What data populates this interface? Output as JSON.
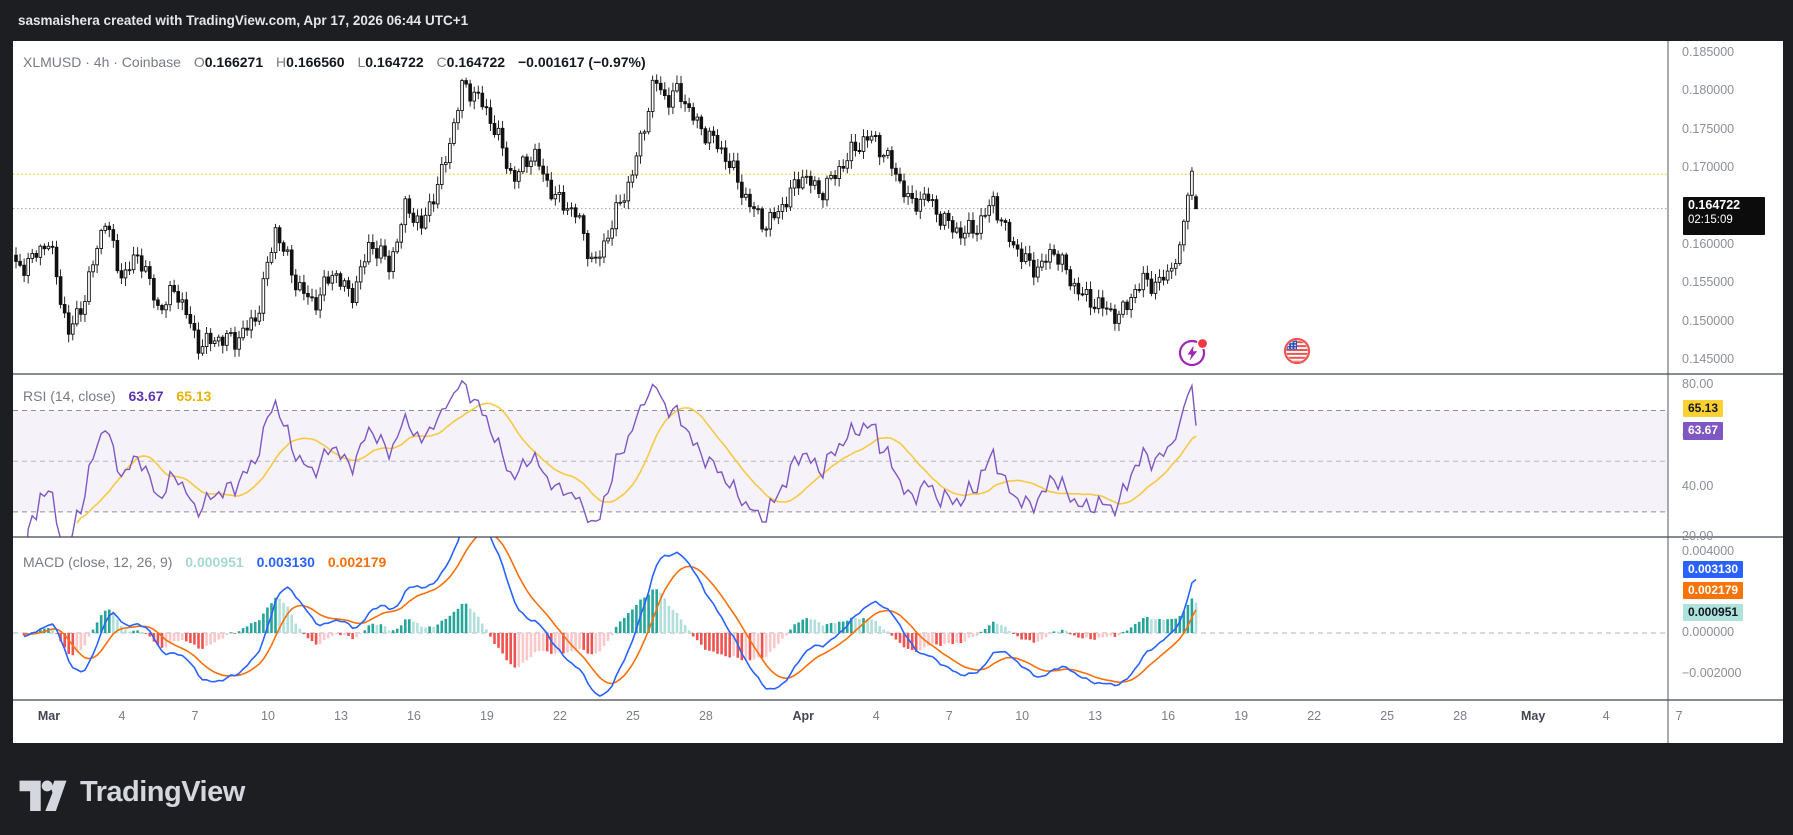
{
  "header": {
    "attribution": "sasmaishera created with TradingView.com, Apr 17, 2026 06:44 UTC+1"
  },
  "footer": {
    "brand": "TradingView"
  },
  "legend": {
    "title": "XLMUSD · 4h · Coinbase",
    "o_label": "O",
    "o_value": "0.166271",
    "h_label": "H",
    "h_value": "0.166560",
    "l_label": "L",
    "l_value": "0.164722",
    "c_label": "C",
    "c_value": "0.164722",
    "change": "−0.001617 (−0.97%)"
  },
  "rsi_legend": {
    "title": "RSI (14, close)",
    "main_value": "63.67",
    "ma_value": "65.13"
  },
  "macd_legend": {
    "title": "MACD (close, 12, 26, 9)",
    "hist_value": "0.000951",
    "macd_value": "0.003130",
    "signal_value": "0.002179"
  },
  "badges": {
    "price": "0.164722",
    "countdown": "02:15:09",
    "rsi_ma": "65.13",
    "rsi_main": "63.67",
    "macd_line": "0.003130",
    "macd_signal": "0.002179",
    "macd_hist": "0.000951"
  },
  "colors": {
    "rsi_purple": "#7e57c2",
    "rsi_yellow": "#f7c948",
    "macd_blue": "#2962ff",
    "macd_orange": "#f7700b",
    "hist_pos_strong": "#26a69a",
    "hist_pos_weak": "#b2dfdb",
    "hist_neg_strong": "#ef5350",
    "hist_neg_weak": "#f9c8ca",
    "candle_up_fill": "#ffffff",
    "candle_down_fill": "#111111",
    "candle_border": "#111111",
    "alert_line_yellow": "#f0c000",
    "price_line_gray": "#a0a3ad"
  },
  "chart_data": [
    {
      "type": "candlestick",
      "symbol": "XLMUSD",
      "interval": "4h",
      "exchange": "Coinbase",
      "last_bar": {
        "open": 0.166271,
        "high": 0.16656,
        "low": 0.164722,
        "close": 0.164722,
        "change": -0.001617,
        "change_pct": -0.97
      },
      "price_axis": {
        "min": 0.145,
        "max": 0.185,
        "tick_step": 0.005,
        "ticks": [
          0.185,
          0.18,
          0.175,
          0.17,
          0.16,
          0.155,
          0.15,
          0.145
        ]
      },
      "levels": {
        "alert_dotted_yellow": 0.1692,
        "last_price_dotted": 0.164722
      },
      "bars_per_day": 6,
      "close_path_keypoints": [
        [
          -1.4,
          0.1572
        ],
        [
          -0.7,
          0.1582
        ],
        [
          0.0,
          0.1602
        ],
        [
          0.8,
          0.1488
        ],
        [
          1.5,
          0.1532
        ],
        [
          2.3,
          0.1635
        ],
        [
          3.0,
          0.156
        ],
        [
          3.7,
          0.1585
        ],
        [
          4.5,
          0.1518
        ],
        [
          5.2,
          0.1545
        ],
        [
          6.1,
          0.1468
        ],
        [
          6.9,
          0.1482
        ],
        [
          7.7,
          0.1472
        ],
        [
          8.5,
          0.1506
        ],
        [
          9.3,
          0.162
        ],
        [
          10.1,
          0.1552
        ],
        [
          10.9,
          0.1526
        ],
        [
          11.7,
          0.1562
        ],
        [
          12.4,
          0.1534
        ],
        [
          13.2,
          0.1602
        ],
        [
          14.0,
          0.157
        ],
        [
          14.7,
          0.1658
        ],
        [
          15.3,
          0.162
        ],
        [
          16.1,
          0.1686
        ],
        [
          17.0,
          0.181
        ],
        [
          17.7,
          0.1786
        ],
        [
          18.4,
          0.175
        ],
        [
          19.1,
          0.1684
        ],
        [
          19.9,
          0.1718
        ],
        [
          20.9,
          0.166
        ],
        [
          21.7,
          0.1636
        ],
        [
          22.4,
          0.1574
        ],
        [
          23.1,
          0.1624
        ],
        [
          23.9,
          0.1682
        ],
        [
          24.5,
          0.1764
        ],
        [
          24.9,
          0.1818
        ],
        [
          25.4,
          0.1784
        ],
        [
          25.9,
          0.18
        ],
        [
          26.7,
          0.1758
        ],
        [
          27.4,
          0.173
        ],
        [
          28.1,
          0.17
        ],
        [
          28.8,
          0.1654
        ],
        [
          29.5,
          0.162
        ],
        [
          30.2,
          0.1656
        ],
        [
          30.9,
          0.1692
        ],
        [
          31.7,
          0.1664
        ],
        [
          32.4,
          0.17
        ],
        [
          33.1,
          0.1724
        ],
        [
          33.9,
          0.174
        ],
        [
          34.7,
          0.1704
        ],
        [
          35.4,
          0.1648
        ],
        [
          36.1,
          0.1665
        ],
        [
          36.8,
          0.1632
        ],
        [
          37.5,
          0.161
        ],
        [
          38.2,
          0.1628
        ],
        [
          38.8,
          0.166
        ],
        [
          39.3,
          0.1614
        ],
        [
          40.0,
          0.1585
        ],
        [
          40.7,
          0.157
        ],
        [
          41.3,
          0.159
        ],
        [
          42.0,
          0.1555
        ],
        [
          42.7,
          0.153
        ],
        [
          43.4,
          0.1513
        ],
        [
          44.0,
          0.1508
        ],
        [
          44.5,
          0.1538
        ],
        [
          45.0,
          0.1552
        ],
        [
          45.5,
          0.1544
        ],
        [
          46.0,
          0.1566
        ],
        [
          46.4,
          0.1582
        ],
        [
          46.7,
          0.1642
        ],
        [
          46.95,
          0.1698
        ],
        [
          47.1,
          0.168
        ],
        [
          47.25,
          0.164722
        ]
      ]
    },
    {
      "type": "line",
      "name": "RSI",
      "period": 14,
      "source": "close",
      "last_value": 63.67,
      "ma_period": 14,
      "ma_last_value": 65.13,
      "band_levels": [
        70,
        50,
        30
      ],
      "axis_ticks": [
        80,
        60,
        40,
        20
      ],
      "visible_range": [
        20,
        84
      ]
    },
    {
      "type": "macd",
      "source": "close",
      "fast": 12,
      "slow": 26,
      "signal_period": 9,
      "last_macd": 0.00313,
      "last_signal": 0.002179,
      "last_hist": 0.000951,
      "axis_ticks": [
        0.004,
        0.0,
        -0.002
      ],
      "zero_line_dashed": true
    }
  ],
  "time_axis": {
    "labels": [
      {
        "text": "Mar",
        "day": 0,
        "month": true
      },
      {
        "text": "4",
        "day": 3
      },
      {
        "text": "7",
        "day": 6
      },
      {
        "text": "10",
        "day": 9
      },
      {
        "text": "13",
        "day": 12
      },
      {
        "text": "16",
        "day": 15
      },
      {
        "text": "19",
        "day": 18
      },
      {
        "text": "22",
        "day": 21
      },
      {
        "text": "25",
        "day": 24
      },
      {
        "text": "28",
        "day": 27
      },
      {
        "text": "Apr",
        "day": 31,
        "month": true
      },
      {
        "text": "4",
        "day": 34
      },
      {
        "text": "7",
        "day": 37
      },
      {
        "text": "10",
        "day": 40
      },
      {
        "text": "13",
        "day": 43
      },
      {
        "text": "16",
        "day": 46
      },
      {
        "text": "19",
        "day": 49
      },
      {
        "text": "22",
        "day": 52
      },
      {
        "text": "25",
        "day": 55
      },
      {
        "text": "28",
        "day": 58
      },
      {
        "text": "May",
        "day": 61,
        "month": true
      },
      {
        "text": "4",
        "day": 64
      },
      {
        "text": "7",
        "day": 67
      }
    ]
  }
}
